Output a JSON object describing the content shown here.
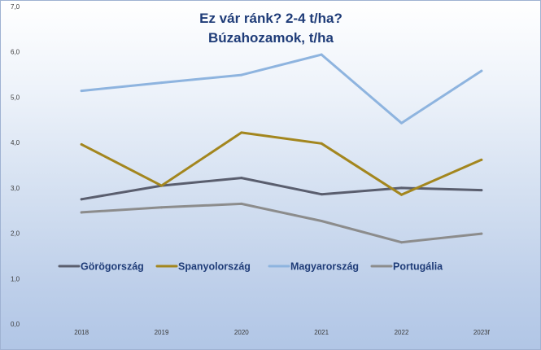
{
  "chart_data": {
    "type": "line",
    "title": [
      "Ez vár ránk? 2-4 t/ha?",
      "Búzahozamok, t/ha"
    ],
    "xlabel": "",
    "ylabel": "",
    "categories": [
      "2018",
      "2019",
      "2020",
      "2021",
      "2022",
      "2023f"
    ],
    "ylim": [
      0,
      7
    ],
    "yticks": [
      "0,0",
      "1,0",
      "2,0",
      "3,0",
      "4,0",
      "5,0",
      "6,0",
      "7,0"
    ],
    "grid": false,
    "legend_position": "middle",
    "series": [
      {
        "name": "Görögország",
        "color": "#5a5e6e",
        "values": [
          2.75,
          3.05,
          3.22,
          2.86,
          3.0,
          2.95
        ]
      },
      {
        "name": "Spanyolország",
        "color": "#a3861e",
        "values": [
          3.96,
          3.05,
          4.22,
          3.98,
          2.85,
          3.62
        ]
      },
      {
        "name": "Magyarország",
        "color": "#8eb4df",
        "values": [
          5.14,
          5.32,
          5.49,
          5.94,
          4.43,
          5.58
        ]
      },
      {
        "name": "Portugália",
        "color": "#8c8c8c",
        "values": [
          2.46,
          2.57,
          2.65,
          2.27,
          1.8,
          1.99
        ]
      }
    ]
  }
}
